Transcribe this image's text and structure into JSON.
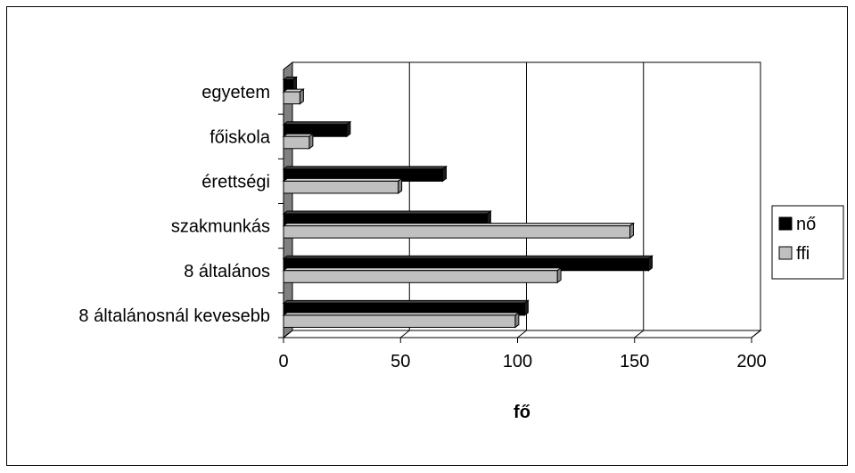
{
  "chart_data": {
    "type": "bar",
    "orientation": "horizontal",
    "style": "3d",
    "categories": [
      "8 általánosnál kevesebb",
      "8 általános",
      "szakmunkás",
      "érettségi",
      "főiskola",
      "egyetem"
    ],
    "series": [
      {
        "name": "nő",
        "color": "#000000",
        "values": [
          103,
          156,
          87,
          68,
          27,
          4
        ]
      },
      {
        "name": "ffi",
        "color": "#c0c0c0",
        "values": [
          99,
          117,
          148,
          49,
          11,
          7
        ]
      }
    ],
    "xlabel": "fő",
    "xlim": [
      0,
      200
    ],
    "xticks": [
      0,
      50,
      100,
      150,
      200
    ],
    "grid": true,
    "legend": "right"
  }
}
